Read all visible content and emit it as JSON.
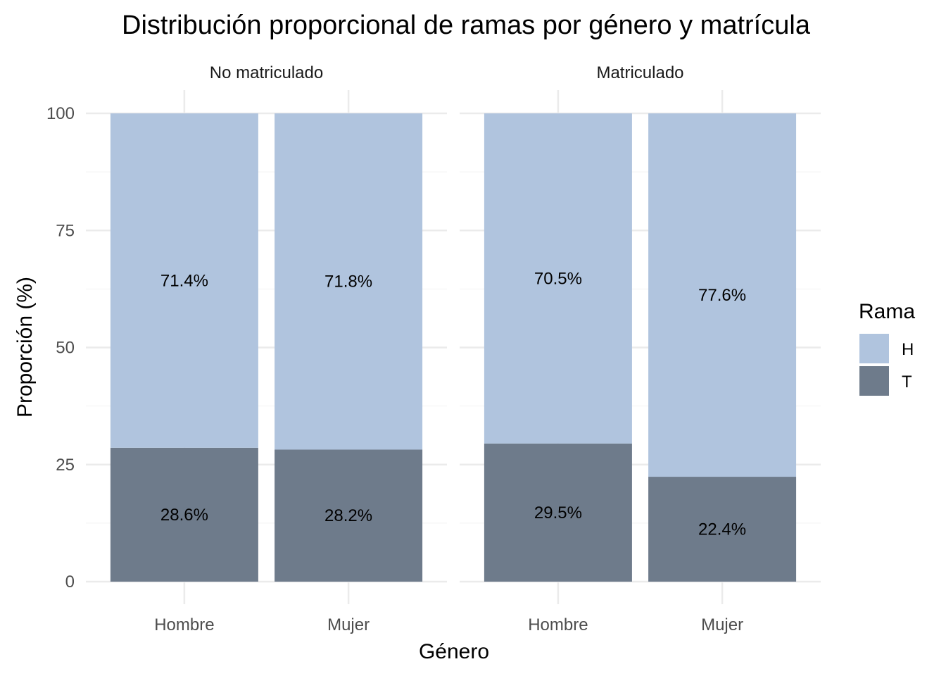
{
  "chart_data": {
    "type": "bar",
    "stacked": true,
    "title": "Distribución proporcional de ramas por género y matrícula",
    "xlabel": "Género",
    "ylabel": "Proporción (%)",
    "ylim": [
      0,
      100
    ],
    "yticks": [
      "0",
      "25",
      "50",
      "75",
      "100"
    ],
    "grid": true,
    "legend": {
      "title": "Rama",
      "position": "right",
      "entries": [
        {
          "name": "H",
          "color": "#b0c4de"
        },
        {
          "name": "T",
          "color": "#6e7b8b"
        }
      ]
    },
    "facets": [
      {
        "label": "No matriculado",
        "categories": [
          "Hombre",
          "Mujer"
        ],
        "series": [
          {
            "name": "T",
            "values": [
              28.6,
              28.2
            ],
            "labels": [
              "28.6%",
              "28.2%"
            ]
          },
          {
            "name": "H",
            "values": [
              71.4,
              71.8
            ],
            "labels": [
              "71.4%",
              "71.8%"
            ]
          }
        ]
      },
      {
        "label": "Matriculado",
        "categories": [
          "Hombre",
          "Mujer"
        ],
        "series": [
          {
            "name": "T",
            "values": [
              29.5,
              22.4
            ],
            "labels": [
              "29.5%",
              "22.4%"
            ]
          },
          {
            "name": "H",
            "values": [
              70.5,
              77.6
            ],
            "labels": [
              "70.5%",
              "77.6%"
            ]
          }
        ]
      }
    ]
  }
}
